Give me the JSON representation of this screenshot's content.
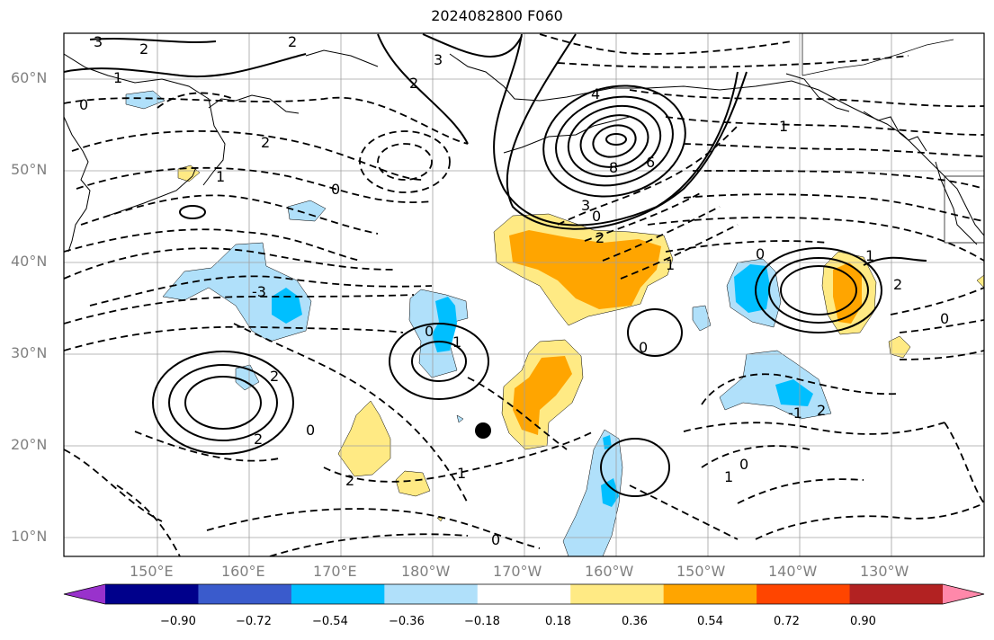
{
  "title": "2024082800 F060",
  "lat_labels": [
    "60°N",
    "50°N",
    "40°N",
    "30°N",
    "20°N",
    "10°N"
  ],
  "lon_labels": [
    "150°E",
    "160°E",
    "170°E",
    "180°W",
    "170°W",
    "160°W",
    "150°W",
    "140°W",
    "130°W"
  ],
  "colorbar": {
    "ticks": [
      "−0.90",
      "−0.72",
      "−0.54",
      "−0.36",
      "−0.18",
      "0.18",
      "0.36",
      "0.54",
      "0.72",
      "0.90"
    ],
    "colors": [
      "#9932cc",
      "#00008b",
      "#3a5bcc",
      "#00bfff",
      "#b0e0fa",
      "#ffffff",
      "#ffea84",
      "#ffa500",
      "#ff4500",
      "#b22222",
      "#ff88aa"
    ]
  },
  "marker": "storm-center",
  "contour_labels": [
    "3",
    "2",
    "2",
    "1",
    "0",
    "3",
    "2",
    "2",
    "1",
    "0",
    "4",
    "8",
    "6",
    "3",
    "0",
    "2",
    "1",
    "0",
    "-3",
    "1",
    "0",
    "2",
    "2",
    "0",
    "2",
    "1",
    "0",
    "1",
    "0",
    "-1",
    "2",
    "1",
    "0",
    "0",
    "1",
    "2"
  ]
}
